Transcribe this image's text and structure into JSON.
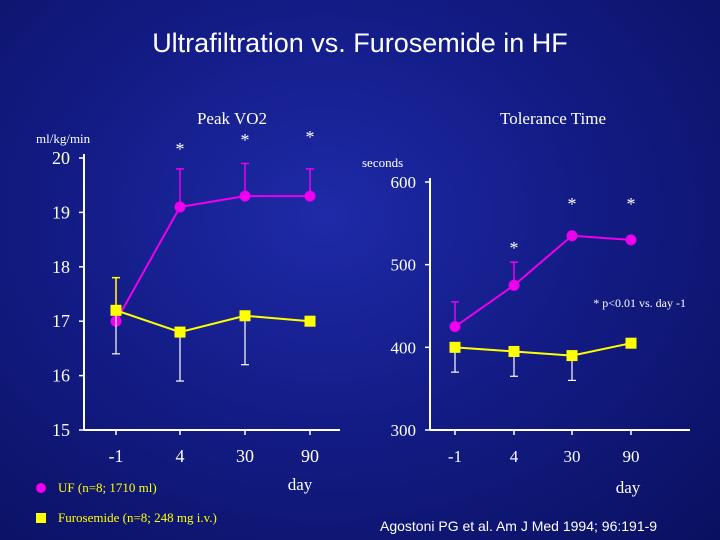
{
  "title": "Ultrafiltration vs. Furosemide in  HF",
  "legend": {
    "uf": "UF (n=8; 1710 ml)",
    "furosemide": "Furosemide (n=8; 248 mg i.v.)"
  },
  "citation": "Agostoni PG et al. Am J Med 1994; 96:191-9",
  "colors": {
    "uf": "#ee00ee",
    "furosemide": "#ffff00",
    "axis": "#ffffff",
    "text": "#ffffff"
  },
  "chart_data": [
    {
      "type": "line",
      "title": "Peak VO2",
      "ylabel": "ml/kg/min",
      "xlabel": "day",
      "categories": [
        "-1",
        "4",
        "30",
        "90"
      ],
      "ylim": [
        15,
        20
      ],
      "yticks": [
        15,
        16,
        17,
        18,
        19,
        20
      ],
      "grid": false,
      "series": [
        {
          "name": "UF (n=8; 1710 ml)",
          "key": "uf",
          "marker": "circle",
          "values": [
            17.0,
            19.1,
            19.3,
            19.3
          ],
          "error_up": [
            0.8,
            0.7,
            0.6,
            0.5
          ],
          "error_down": [
            0,
            0,
            0,
            0
          ]
        },
        {
          "name": "Furosemide (n=8; 248 mg i.v.)",
          "key": "furosemide",
          "marker": "square",
          "values": [
            17.2,
            16.8,
            17.1,
            17.0
          ],
          "error_up": [
            0.6,
            0,
            0,
            0
          ],
          "error_down": [
            0.8,
            0.9,
            0.9,
            0
          ]
        }
      ],
      "significance": [
        "",
        "*",
        "*",
        "*"
      ]
    },
    {
      "type": "line",
      "title": "Tolerance Time",
      "ylabel": "seconds",
      "xlabel": "day",
      "categories": [
        "-1",
        "4",
        "30",
        "90"
      ],
      "ylim": [
        300,
        600
      ],
      "yticks": [
        300,
        400,
        500,
        600
      ],
      "grid": false,
      "annotation": "* p<0.01 vs. day -1",
      "series": [
        {
          "name": "UF (n=8; 1710 ml)",
          "key": "uf",
          "marker": "circle",
          "values": [
            425,
            475,
            535,
            530
          ],
          "error_up": [
            30,
            28,
            0,
            0
          ],
          "error_down": [
            0,
            0,
            0,
            0
          ]
        },
        {
          "name": "Furosemide (n=8; 248 mg i.v.)",
          "key": "furosemide",
          "marker": "square",
          "values": [
            400,
            395,
            390,
            405
          ],
          "error_up": [
            0,
            0,
            0,
            0
          ],
          "error_down": [
            30,
            30,
            30,
            0
          ]
        }
      ],
      "significance": [
        "",
        "*",
        "*",
        "*"
      ]
    }
  ]
}
